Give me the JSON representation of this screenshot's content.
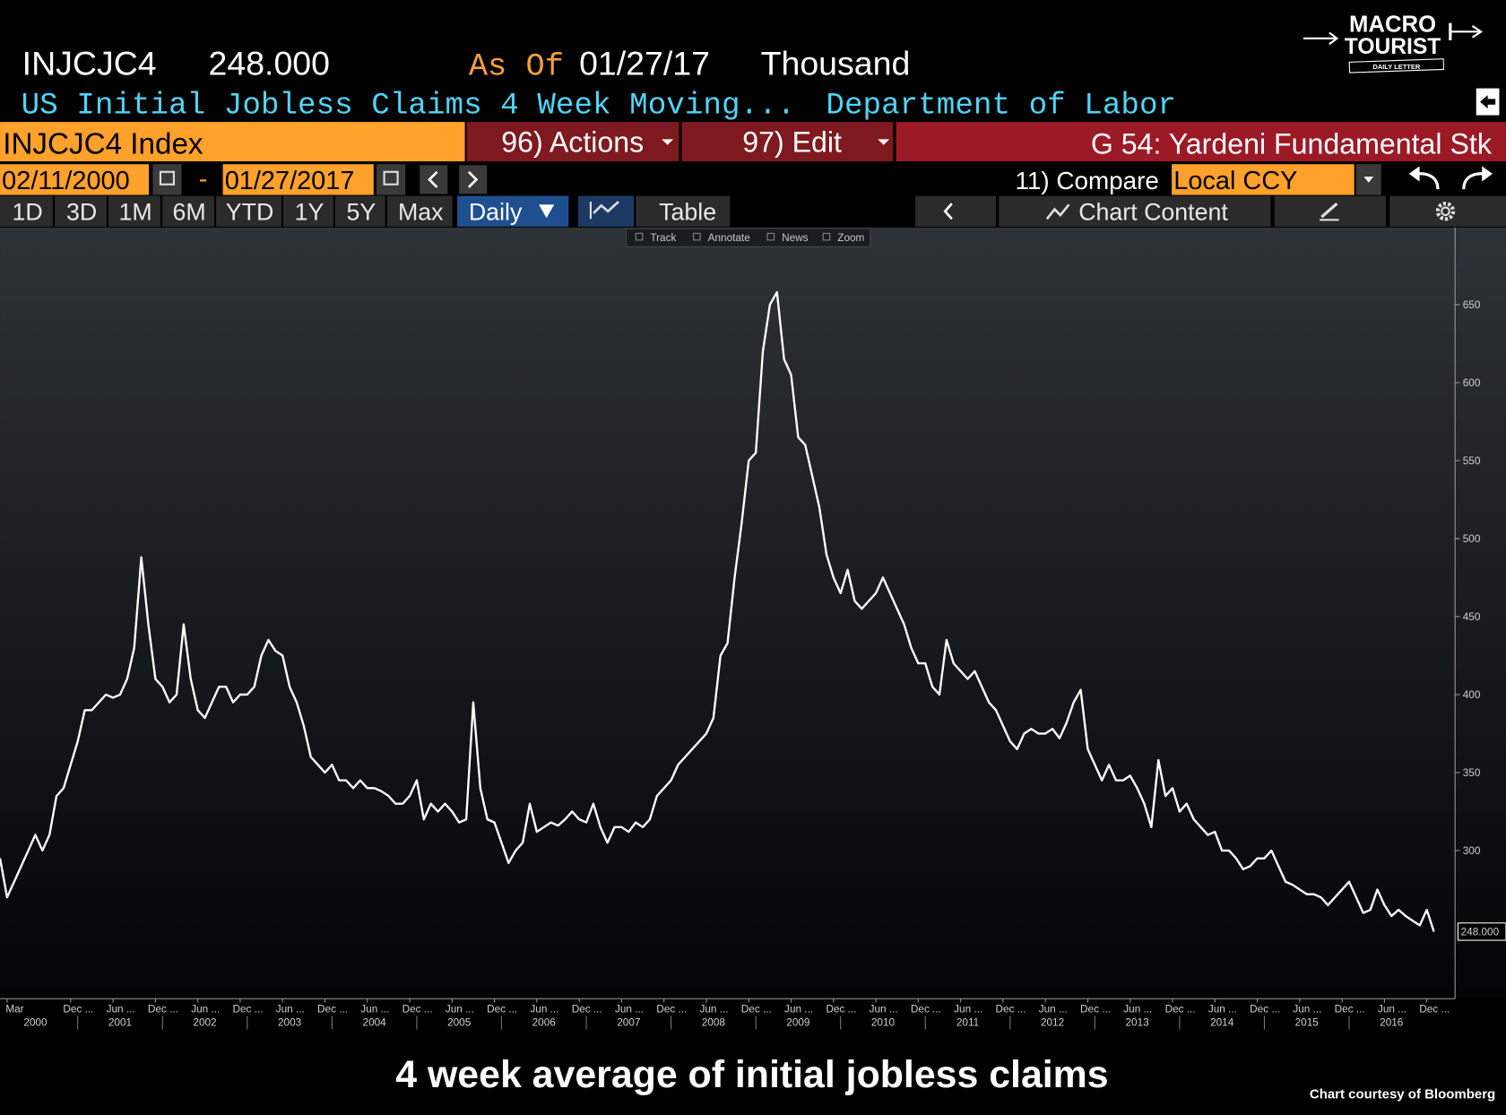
{
  "header": {
    "ticker": "INJCJC4",
    "price": "248.000",
    "as_of_label": "As Of",
    "as_of_date": "01/27/17",
    "unit": "Thousand",
    "name": "US Initial Jobless Claims 4 Week Moving...",
    "source": "Department of Labor"
  },
  "logo": {
    "line1": "MACRO",
    "line2": "TOURIST",
    "line3": "DAILY LETTER"
  },
  "toolbar": {
    "security": "INJCJC4 Index",
    "actions": "96) Actions",
    "edit": "97) Edit",
    "group": "G 54: Yardeni Fundamental Stk",
    "start_date": "02/11/2000",
    "date_separator": "-",
    "end_date": "01/27/2017",
    "compare": "11) Compare",
    "currency": "Local CCY",
    "periods": [
      "1D",
      "3D",
      "1M",
      "6M",
      "YTD",
      "1Y",
      "5Y",
      "Max"
    ],
    "frequency": "Daily",
    "table": "Table",
    "chart_content": "Chart Content",
    "chart_tools": [
      "Track",
      "Annotate",
      "News",
      "Zoom"
    ]
  },
  "chart_data": {
    "type": "line",
    "color": "#ffffff",
    "x": [
      "2000-02",
      "2000-03",
      "2000-04",
      "2000-05",
      "2000-06",
      "2000-07",
      "2000-08",
      "2000-09",
      "2000-10",
      "2000-11",
      "2000-12",
      "2001-01",
      "2001-02",
      "2001-03",
      "2001-04",
      "2001-05",
      "2001-06",
      "2001-07",
      "2001-08",
      "2001-09",
      "2001-10",
      "2001-11",
      "2001-12",
      "2002-01",
      "2002-02",
      "2002-03",
      "2002-04",
      "2002-05",
      "2002-06",
      "2002-07",
      "2002-08",
      "2002-09",
      "2002-10",
      "2002-11",
      "2002-12",
      "2003-01",
      "2003-02",
      "2003-03",
      "2003-04",
      "2003-05",
      "2003-06",
      "2003-07",
      "2003-08",
      "2003-09",
      "2003-10",
      "2003-11",
      "2003-12",
      "2004-01",
      "2004-02",
      "2004-03",
      "2004-04",
      "2004-05",
      "2004-06",
      "2004-07",
      "2004-08",
      "2004-09",
      "2004-10",
      "2004-11",
      "2004-12",
      "2005-01",
      "2005-02",
      "2005-03",
      "2005-04",
      "2005-05",
      "2005-06",
      "2005-07",
      "2005-08",
      "2005-09",
      "2005-10",
      "2005-11",
      "2005-12",
      "2006-01",
      "2006-02",
      "2006-03",
      "2006-04",
      "2006-05",
      "2006-06",
      "2006-07",
      "2006-08",
      "2006-09",
      "2006-10",
      "2006-11",
      "2006-12",
      "2007-01",
      "2007-02",
      "2007-03",
      "2007-04",
      "2007-05",
      "2007-06",
      "2007-07",
      "2007-08",
      "2007-09",
      "2007-10",
      "2007-11",
      "2007-12",
      "2008-01",
      "2008-02",
      "2008-03",
      "2008-04",
      "2008-05",
      "2008-06",
      "2008-07",
      "2008-08",
      "2008-09",
      "2008-10",
      "2008-11",
      "2008-12",
      "2009-01",
      "2009-02",
      "2009-03",
      "2009-04",
      "2009-05",
      "2009-06",
      "2009-07",
      "2009-08",
      "2009-09",
      "2009-10",
      "2009-11",
      "2009-12",
      "2010-01",
      "2010-02",
      "2010-03",
      "2010-04",
      "2010-05",
      "2010-06",
      "2010-07",
      "2010-08",
      "2010-09",
      "2010-10",
      "2010-11",
      "2010-12",
      "2011-01",
      "2011-02",
      "2011-03",
      "2011-04",
      "2011-05",
      "2011-06",
      "2011-07",
      "2011-08",
      "2011-09",
      "2011-10",
      "2011-11",
      "2011-12",
      "2012-01",
      "2012-02",
      "2012-03",
      "2012-04",
      "2012-05",
      "2012-06",
      "2012-07",
      "2012-08",
      "2012-09",
      "2012-10",
      "2012-11",
      "2012-12",
      "2013-01",
      "2013-02",
      "2013-03",
      "2013-04",
      "2013-05",
      "2013-06",
      "2013-07",
      "2013-08",
      "2013-09",
      "2013-10",
      "2013-11",
      "2013-12",
      "2014-01",
      "2014-02",
      "2014-03",
      "2014-04",
      "2014-05",
      "2014-06",
      "2014-07",
      "2014-08",
      "2014-09",
      "2014-10",
      "2014-11",
      "2014-12",
      "2015-01",
      "2015-02",
      "2015-03",
      "2015-04",
      "2015-05",
      "2015-06",
      "2015-07",
      "2015-08",
      "2015-09",
      "2015-10",
      "2015-11",
      "2015-12",
      "2016-01",
      "2016-02",
      "2016-03",
      "2016-04",
      "2016-05",
      "2016-06",
      "2016-07",
      "2016-08",
      "2016-09",
      "2016-10",
      "2016-11",
      "2016-12",
      "2017-01"
    ],
    "values": [
      295,
      270,
      280,
      290,
      300,
      310,
      300,
      310,
      335,
      340,
      355,
      370,
      390,
      390,
      395,
      400,
      398,
      400,
      410,
      430,
      488,
      445,
      410,
      405,
      395,
      400,
      445,
      410,
      390,
      385,
      395,
      405,
      405,
      395,
      400,
      400,
      405,
      425,
      435,
      428,
      425,
      405,
      395,
      380,
      360,
      355,
      350,
      355,
      345,
      345,
      340,
      345,
      340,
      340,
      338,
      335,
      330,
      330,
      335,
      345,
      320,
      330,
      325,
      330,
      325,
      318,
      320,
      395,
      340,
      320,
      318,
      305,
      292,
      300,
      305,
      330,
      312,
      315,
      318,
      316,
      320,
      325,
      320,
      318,
      330,
      315,
      305,
      315,
      315,
      312,
      318,
      315,
      320,
      335,
      340,
      345,
      355,
      360,
      365,
      370,
      375,
      385,
      425,
      433,
      475,
      510,
      550,
      555,
      620,
      650,
      658,
      615,
      605,
      565,
      560,
      540,
      520,
      490,
      475,
      465,
      480,
      460,
      455,
      460,
      465,
      475,
      465,
      455,
      445,
      430,
      420,
      420,
      405,
      400,
      435,
      420,
      415,
      410,
      415,
      405,
      395,
      390,
      380,
      370,
      365,
      375,
      378,
      375,
      375,
      378,
      372,
      382,
      395,
      403,
      365,
      355,
      345,
      355,
      345,
      345,
      348,
      340,
      330,
      315,
      358,
      335,
      340,
      325,
      330,
      320,
      315,
      310,
      312,
      300,
      300,
      295,
      288,
      290,
      295,
      295,
      300,
      290,
      280,
      278,
      275,
      272,
      272,
      270,
      265,
      270,
      275,
      280,
      270,
      260,
      262,
      275,
      265,
      258,
      262,
      258,
      255,
      252,
      262,
      248
    ],
    "xlim": [
      "2000-02",
      "2017-04"
    ],
    "xticks": [
      {
        "value": "2000-03",
        "label": "Mar"
      },
      {
        "value": "2000-12",
        "label": "Dec ..."
      },
      {
        "value": "2001-06",
        "label": "Jun ..."
      },
      {
        "value": "2001-12",
        "label": "Dec ..."
      },
      {
        "value": "2002-06",
        "label": "Jun ..."
      },
      {
        "value": "2002-12",
        "label": "Dec ..."
      },
      {
        "value": "2003-06",
        "label": "Jun ..."
      },
      {
        "value": "2003-12",
        "label": "Dec ..."
      },
      {
        "value": "2004-06",
        "label": "Jun ..."
      },
      {
        "value": "2004-12",
        "label": "Dec ..."
      },
      {
        "value": "2005-06",
        "label": "Jun ..."
      },
      {
        "value": "2005-12",
        "label": "Dec ..."
      },
      {
        "value": "2006-06",
        "label": "Jun ..."
      },
      {
        "value": "2006-12",
        "label": "Dec ..."
      },
      {
        "value": "2007-06",
        "label": "Jun ..."
      },
      {
        "value": "2007-12",
        "label": "Dec ..."
      },
      {
        "value": "2008-06",
        "label": "Jun ..."
      },
      {
        "value": "2008-12",
        "label": "Dec ..."
      },
      {
        "value": "2009-06",
        "label": "Jun ..."
      },
      {
        "value": "2009-12",
        "label": "Dec ..."
      },
      {
        "value": "2010-06",
        "label": "Jun ..."
      },
      {
        "value": "2010-12",
        "label": "Dec ..."
      },
      {
        "value": "2011-06",
        "label": "Jun ..."
      },
      {
        "value": "2011-12",
        "label": "Dec ..."
      },
      {
        "value": "2012-06",
        "label": "Jun ..."
      },
      {
        "value": "2012-12",
        "label": "Dec ..."
      },
      {
        "value": "2013-06",
        "label": "Jun ..."
      },
      {
        "value": "2013-12",
        "label": "Dec ..."
      },
      {
        "value": "2014-06",
        "label": "Jun ..."
      },
      {
        "value": "2014-12",
        "label": "Dec ..."
      },
      {
        "value": "2015-06",
        "label": "Jun ..."
      },
      {
        "value": "2015-12",
        "label": "Dec ..."
      },
      {
        "value": "2016-06",
        "label": "Jun ..."
      },
      {
        "value": "2016-12",
        "label": "Dec ..."
      }
    ],
    "year_labels": [
      2000,
      2001,
      2002,
      2003,
      2004,
      2005,
      2006,
      2007,
      2008,
      2009,
      2010,
      2011,
      2012,
      2013,
      2014,
      2015,
      2016
    ],
    "ylim": [
      205,
      700
    ],
    "yticks": [
      300,
      350,
      400,
      450,
      500,
      550,
      600,
      650
    ]
  },
  "caption": "4 week average of initial jobless claims",
  "credit": "Chart courtesy of Bloomberg"
}
